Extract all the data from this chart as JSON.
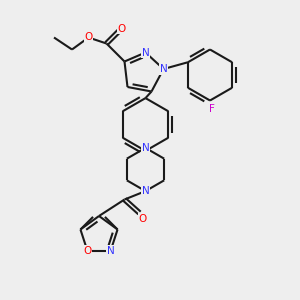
{
  "bg_color": "#eeeeee",
  "bond_color": "#1a1a1a",
  "N_color": "#3333ff",
  "O_color": "#ff0000",
  "F_color": "#cc00cc",
  "line_width": 1.5,
  "dbo": 0.12,
  "figsize": [
    3.0,
    3.0
  ],
  "dpi": 100,
  "xlim": [
    0,
    10
  ],
  "ylim": [
    0,
    10
  ]
}
